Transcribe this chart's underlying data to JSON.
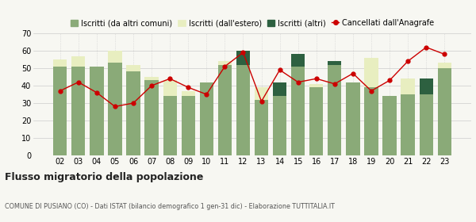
{
  "years": [
    "02",
    "03",
    "04",
    "05",
    "06",
    "07",
    "08",
    "09",
    "10",
    "11",
    "12",
    "13",
    "14",
    "15",
    "16",
    "17",
    "18",
    "19",
    "20",
    "21",
    "22",
    "23"
  ],
  "iscritti_comuni": [
    51,
    51,
    51,
    53,
    48,
    43,
    34,
    34,
    42,
    52,
    52,
    32,
    34,
    51,
    39,
    52,
    42,
    39,
    34,
    35,
    35,
    50
  ],
  "iscritti_estero": [
    4,
    6,
    0,
    7,
    4,
    2,
    9,
    3,
    0,
    2,
    0,
    7,
    0,
    0,
    2,
    0,
    0,
    17,
    0,
    9,
    0,
    3
  ],
  "iscritti_altri": [
    0,
    0,
    0,
    0,
    0,
    0,
    0,
    0,
    0,
    0,
    8,
    0,
    8,
    7,
    0,
    2,
    0,
    0,
    0,
    0,
    9,
    0
  ],
  "cancellati": [
    37,
    42,
    36,
    28,
    30,
    40,
    44,
    39,
    35,
    51,
    59,
    31,
    49,
    42,
    44,
    41,
    47,
    37,
    43,
    54,
    62,
    58
  ],
  "color_comuni": "#8aaa78",
  "color_estero": "#e8eec0",
  "color_altri": "#2d6040",
  "color_cancellati": "#cc0000",
  "background": "#f7f7f2",
  "grid_color": "#cccccc",
  "ylim": [
    0,
    70
  ],
  "yticks": [
    0,
    10,
    20,
    30,
    40,
    50,
    60,
    70
  ],
  "legend_labels": [
    "Iscritti (da altri comuni)",
    "Iscritti (dall'estero)",
    "Iscritti (altri)",
    "Cancellati dall'Anagrafe"
  ],
  "title": "Flusso migratorio della popolazione",
  "subtitle": "COMUNE DI PUSIANO (CO) - Dati ISTAT (bilancio demografico 1 gen-31 dic) - Elaborazione TUTTITALIA.IT"
}
